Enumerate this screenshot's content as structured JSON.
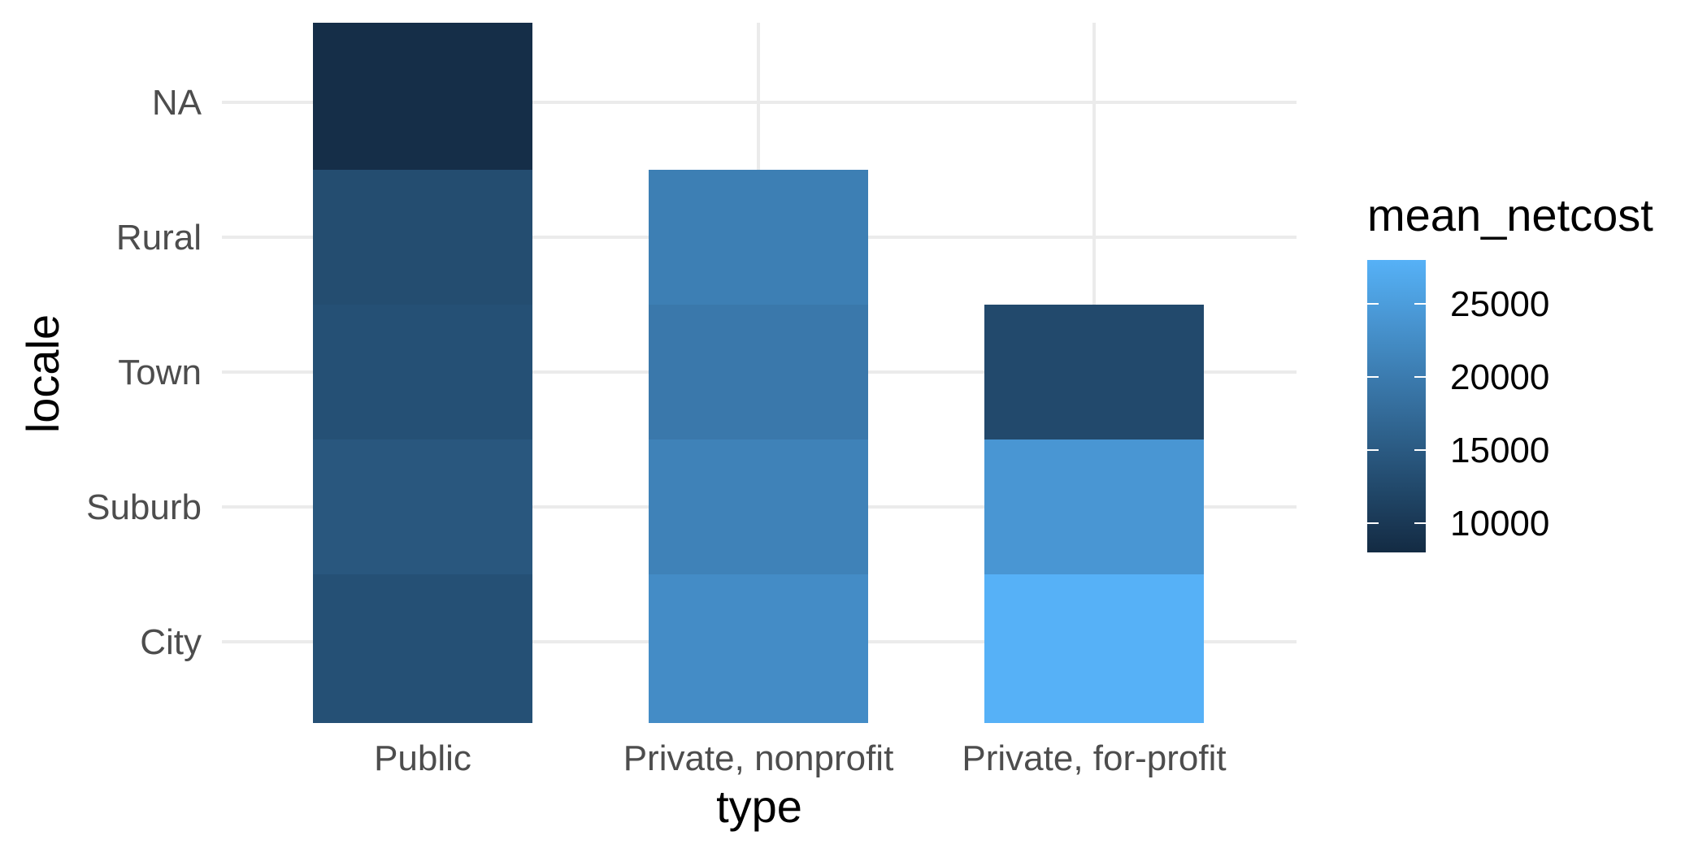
{
  "chart_data": {
    "type": "heatmap",
    "title": "",
    "xlabel": "type",
    "ylabel": "locale",
    "x_categories": [
      "Public",
      "Private, nonprofit",
      "Private, for-profit"
    ],
    "y_categories": [
      "City",
      "Suburb",
      "Town",
      "Rural",
      "NA"
    ],
    "grid": true,
    "legend": {
      "title": "mean_netcost",
      "placement": "right",
      "ticks": [
        10000,
        15000,
        20000,
        25000
      ],
      "tick_labels": [
        "10000",
        "15000",
        "20000",
        "25000"
      ],
      "range": [
        8000,
        28000
      ],
      "low_color": "#132b43",
      "high_color": "#56b1f7"
    },
    "series": [
      {
        "name": "Public",
        "values": {
          "City": 13500,
          "Suburb": 14500,
          "Town": 13500,
          "Rural": 13000,
          "NA": 8500
        }
      },
      {
        "name": "Private, nonprofit",
        "values": {
          "City": 22500,
          "Suburb": 21000,
          "Town": 19500,
          "Rural": 20500
        }
      },
      {
        "name": "Private, for-profit",
        "values": {
          "City": 28000,
          "Suburb": 24000,
          "Town": 12500
        }
      }
    ]
  }
}
